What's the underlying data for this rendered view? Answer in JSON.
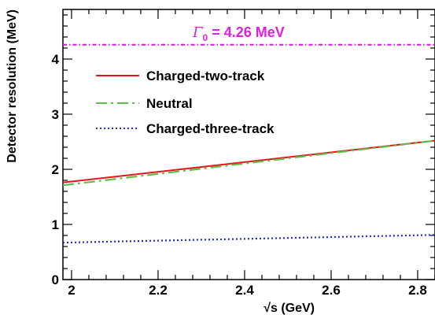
{
  "chart_data": {
    "type": "line",
    "xlabel": "√s (GeV)",
    "ylabel": "Detector resolution (MeV)",
    "xlim": [
      1.98,
      2.84
    ],
    "ylim": [
      0,
      4.9
    ],
    "x_ticks": [
      "2",
      "2.2",
      "2.4",
      "2.6",
      "2.8"
    ],
    "y_ticks": [
      "0",
      "1",
      "2",
      "3",
      "4"
    ],
    "grid": false,
    "legend_position": "top-left",
    "series": [
      {
        "name": "Charged-two-track",
        "x": [
          1.98,
          2.84
        ],
        "y": [
          1.76,
          2.52
        ],
        "color": "#e8141a",
        "style": "solid"
      },
      {
        "name": "Neutral",
        "x": [
          1.98,
          2.84
        ],
        "y": [
          1.71,
          2.52
        ],
        "color": "#5cbf4a",
        "style": "dashdot"
      },
      {
        "name": "Charged-three-track",
        "x": [
          1.98,
          2.84
        ],
        "y": [
          0.67,
          0.81
        ],
        "color": "#1a2ecc",
        "style": "dotted"
      }
    ],
    "reference_line": {
      "y": 4.26,
      "color": "#e020e0",
      "style": "dashdot",
      "label_symbol": "Γ",
      "label_subscript": "0",
      "label_text": " = 4.26 MeV"
    }
  }
}
